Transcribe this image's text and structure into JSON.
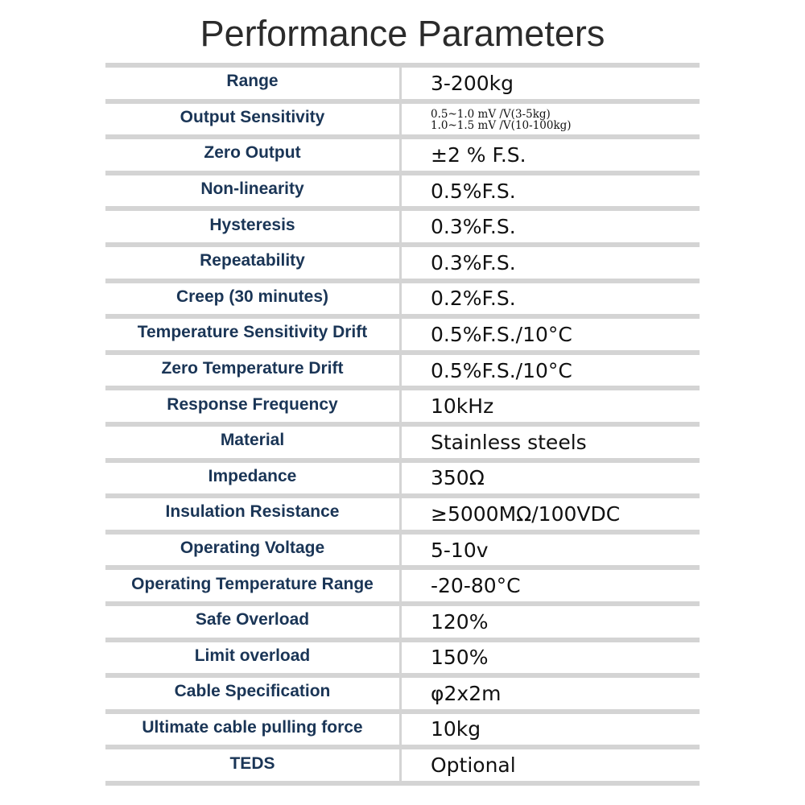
{
  "title": "Performance Parameters",
  "rows": [
    {
      "name": "Range",
      "value": "3-200kg"
    },
    {
      "name": "Output Sensitivity",
      "value_lines": [
        "0.5~1.0 mV /V(3-5kg)",
        "1.0~1.5 mV /V(10-100kg)"
      ]
    },
    {
      "name": "Zero Output",
      "value": "±2 % F.S."
    },
    {
      "name": "Non-linearity",
      "value": "0.5%F.S."
    },
    {
      "name": "Hysteresis",
      "value": "0.3%F.S."
    },
    {
      "name": "Repeatability",
      "value": "0.3%F.S."
    },
    {
      "name": "Creep (30 minutes)",
      "value": "0.2%F.S."
    },
    {
      "name": "Temperature Sensitivity Drift",
      "value": "0.5%F.S./10°C"
    },
    {
      "name": "Zero Temperature Drift",
      "value": "0.5%F.S./10°C"
    },
    {
      "name": "Response Frequency",
      "value": "10kHz"
    },
    {
      "name": "Material",
      "value": "Stainless steels"
    },
    {
      "name": "Impedance",
      "value": "350Ω"
    },
    {
      "name": "Insulation Resistance",
      "value": "≥5000MΩ/100VDC"
    },
    {
      "name": "Operating Voltage",
      "value": "5-10v"
    },
    {
      "name": "Operating Temperature Range",
      "value": "-20-80°C"
    },
    {
      "name": "Safe Overload",
      "value": "120%"
    },
    {
      "name": "Limit overload",
      "value": "150%"
    },
    {
      "name": "Cable Specification",
      "value": "φ2x2m"
    },
    {
      "name": "Ultimate cable pulling force",
      "value": "10kg"
    },
    {
      "name": "TEDS",
      "value": "Optional"
    }
  ]
}
